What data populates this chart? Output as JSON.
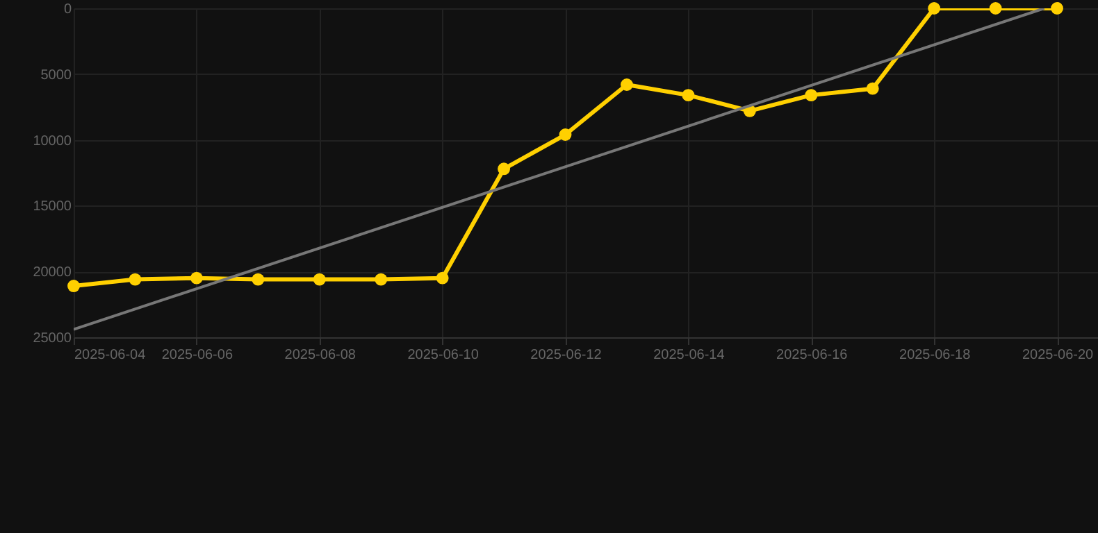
{
  "chart_data": {
    "type": "line",
    "x": [
      "2025-06-04",
      "2025-06-05",
      "2025-06-06",
      "2025-06-07",
      "2025-06-08",
      "2025-06-09",
      "2025-06-10",
      "2025-06-11",
      "2025-06-12",
      "2025-06-13",
      "2025-06-14",
      "2025-06-15",
      "2025-06-16",
      "2025-06-17",
      "2025-06-18",
      "2025-06-19",
      "2025-06-20"
    ],
    "series": [
      {
        "color": "#ffd000",
        "marker": "circle",
        "values": [
          21100,
          20600,
          20500,
          20600,
          20600,
          20600,
          20500,
          12200,
          9600,
          5800,
          6600,
          7800,
          6600,
          6100,
          0,
          0,
          0
        ]
      },
      {
        "type": "line",
        "color": "#777777",
        "marker": "none",
        "x": [
          "2025-06-04",
          "2025-06-19T19:00"
        ],
        "values": [
          24400,
          0
        ]
      }
    ],
    "xlim": [
      "2025-06-04",
      "2025-06-20T16:00"
    ],
    "xticks": [
      "2025-06-04",
      "2025-06-06",
      "2025-06-08",
      "2025-06-10",
      "2025-06-12",
      "2025-06-14",
      "2025-06-16",
      "2025-06-18",
      "2025-06-20"
    ],
    "ylim": [
      25000,
      0
    ],
    "yticks": [
      0,
      5000,
      10000,
      15000,
      20000,
      25000
    ],
    "grid": true
  }
}
